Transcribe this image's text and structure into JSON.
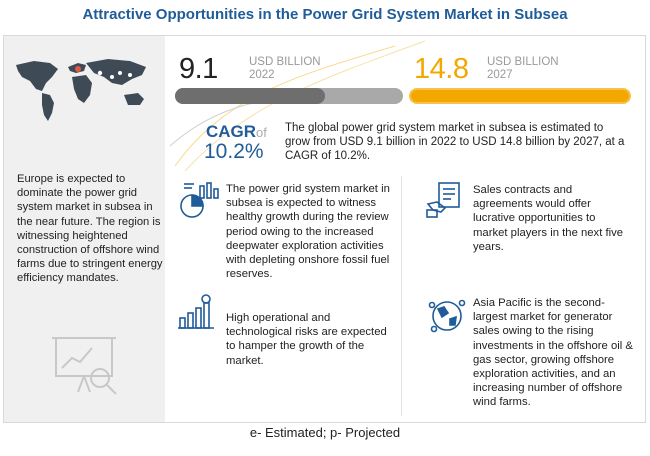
{
  "title": "Attractive Opportunities in the Power Grid System Market in Subsea",
  "market_2022": {
    "value": "9.1",
    "unit": "USD BILLION",
    "year": "2022"
  },
  "market_2027": {
    "value": "14.8",
    "unit": "USD BILLION",
    "year": "2027"
  },
  "cagr": {
    "label": "CAGR",
    "of": "of",
    "value": "10.2%",
    "text": "The global power grid system market in subsea is estimated to grow from  USD 9.1 billion in 2022 to USD 14.8 billion  by 2027, at a CAGR of 10.2%."
  },
  "left_panel": {
    "text": "Europe is expected to dominate the power grid system market in subsea in the near future. The region is witnessing heightened construction of offshore wind farms due to stringent energy efficiency mandates."
  },
  "insights": [
    {
      "icon": "pie-chart-icon",
      "text": "The power grid system market in subsea is expected to witness healthy growth during the review period owing to the increased deepwater exploration activities with depleting onshore fossil fuel reserves."
    },
    {
      "icon": "rising-bar-chart-icon",
      "text": "High operational and technological risks are expected to hamper the growth of the market."
    },
    {
      "icon": "handshake-contract-icon",
      "text": "Sales contracts and agreements would offer lucrative opportunities to market players in the next five years."
    },
    {
      "icon": "globe-network-icon",
      "text": "Asia Pacific is the second-largest market for generator sales owing to the rising investments in the offshore oil & gas sector, growing offshore exploration activities, and an increasing number of offshore wind farms."
    }
  ],
  "footer": "e- Estimated; p- Projected",
  "colors": {
    "title": "#1f5c99",
    "accent": "#f2a800",
    "bar_2022": "#6e6e6e",
    "icon_blue": "#1f5c99"
  }
}
